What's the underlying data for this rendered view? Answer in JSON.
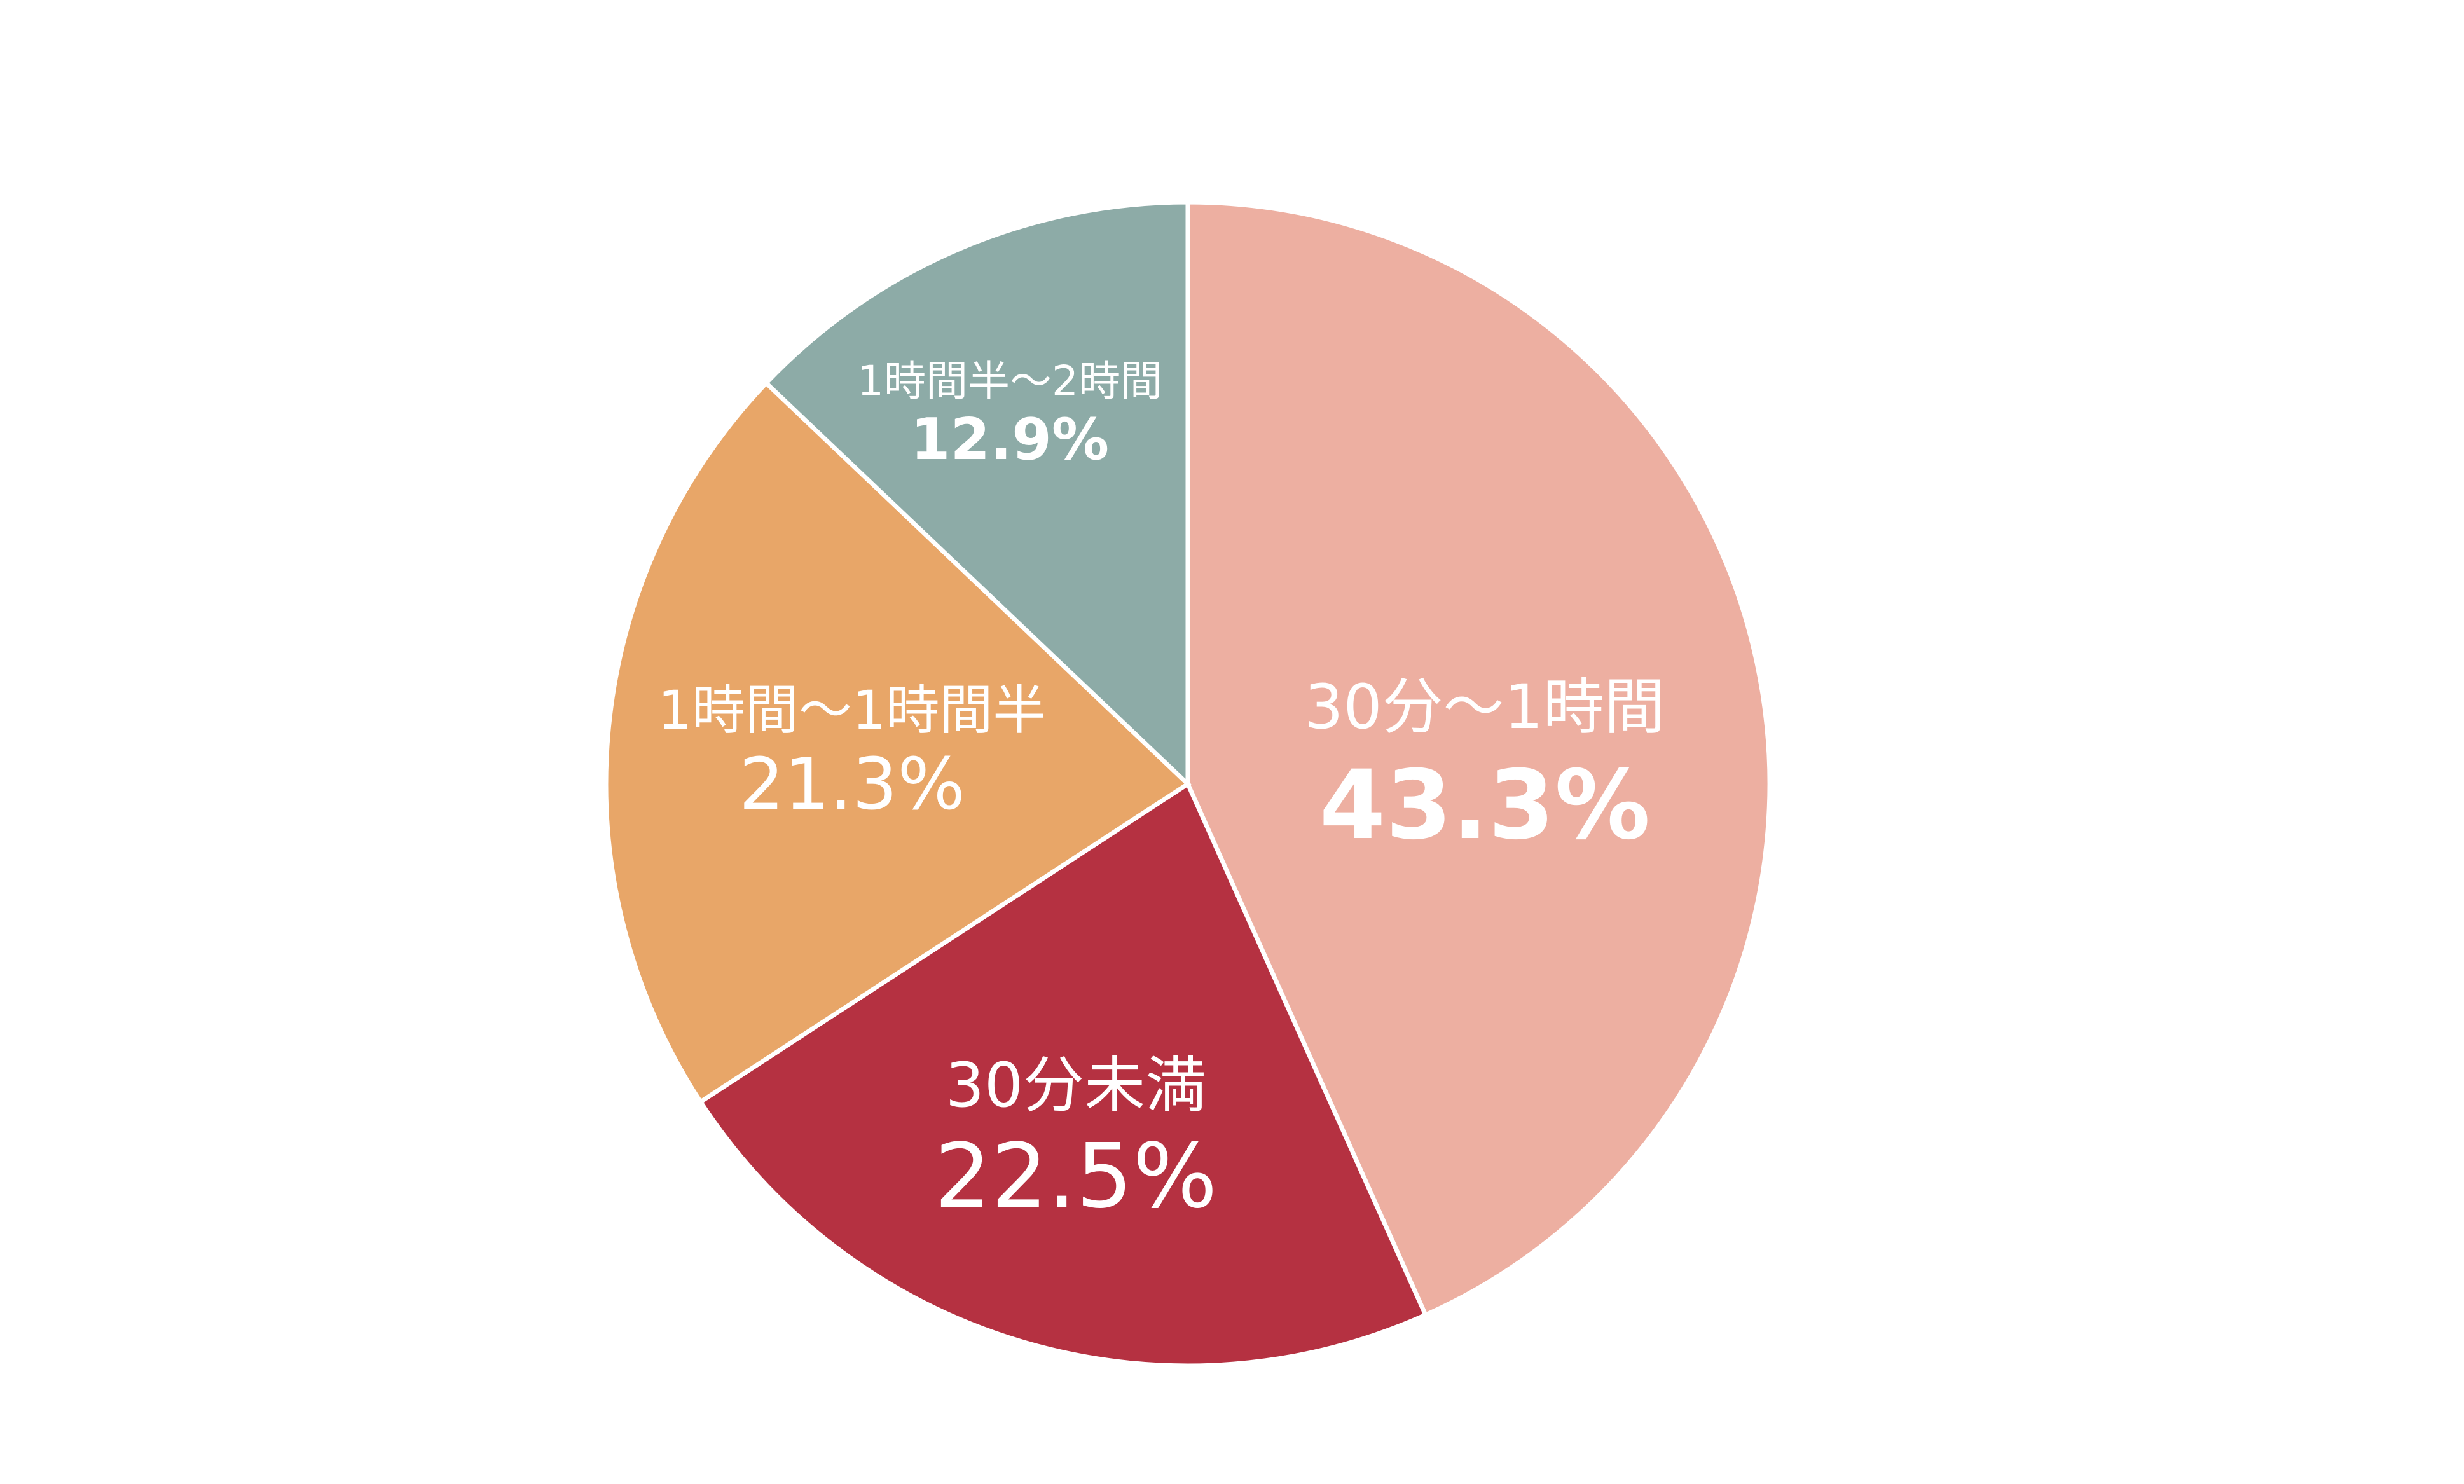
{
  "chart_data": {
    "type": "pie",
    "unit": "%",
    "start": "12 o'clock",
    "direction": "clockwise",
    "slices": [
      {
        "category": "30分～1時間",
        "value": 43.3,
        "value_label": "43.3%",
        "color": "#edafa1"
      },
      {
        "category": "30分未満",
        "value": 22.5,
        "value_label": "22.5%",
        "color": "#b53141"
      },
      {
        "category": "1時間～1時間半",
        "value": 21.3,
        "value_label": "21.3%",
        "color": "#e8a668"
      },
      {
        "category": "1時間半～2時間",
        "value": 12.9,
        "value_label": "12.9%",
        "color": "#8daba7"
      }
    ]
  }
}
